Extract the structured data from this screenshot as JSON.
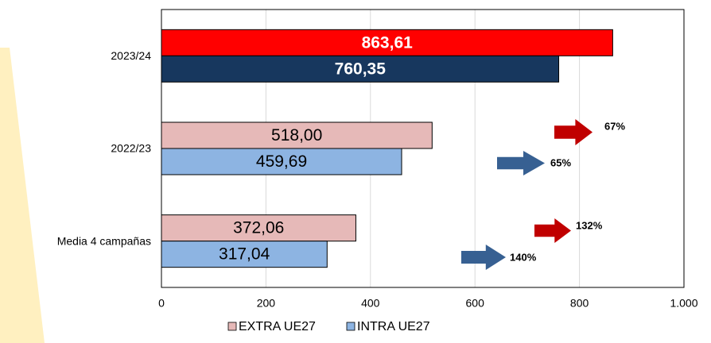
{
  "chart_data": {
    "type": "hbar",
    "categories": [
      "2023/24",
      "2022/23",
      "Media 4 campañas"
    ],
    "series": [
      {
        "name": "EXTRA UE27",
        "color": "#e6b9b8",
        "bar_colors": [
          "#ff0000",
          "#e6b9b8",
          "#e6b9b8"
        ],
        "values": [
          863.61,
          518.0,
          372.06
        ],
        "value_labels": [
          "863,61",
          "518,00",
          "372,06"
        ]
      },
      {
        "name": "INTRA UE27",
        "color": "#8db4e2",
        "bar_colors": [
          "#17375e",
          "#8db4e2",
          "#8db4e2"
        ],
        "values": [
          760.35,
          459.69,
          317.04
        ],
        "value_labels": [
          "760,35",
          "459,69",
          "317,04"
        ]
      }
    ],
    "xlim": [
      0,
      1000
    ],
    "xticks": [
      0,
      200,
      400,
      600,
      800,
      {
        "value": 1000,
        "label": "1.000"
      }
    ],
    "grid": true,
    "legend": "bottom",
    "annotations": [
      {
        "text": "67%",
        "color": "#c00000"
      },
      {
        "text": "65%",
        "color": "#376092"
      },
      {
        "text": "132%",
        "color": "#c00000"
      },
      {
        "text": "140%",
        "color": "#376092"
      }
    ]
  }
}
